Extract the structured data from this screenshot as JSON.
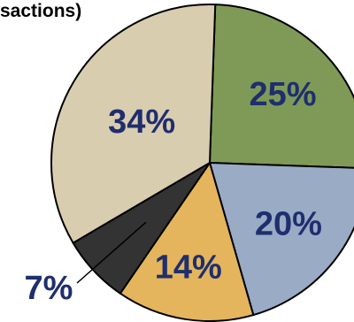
{
  "chart_data": {
    "type": "pie",
    "title": "sactions)",
    "start_angle_deg": 2,
    "direction": "clockwise",
    "slices": [
      {
        "label": "25%",
        "value": 25,
        "color": "#7f9a57"
      },
      {
        "label": "20%",
        "value": 20,
        "color": "#9aabc6"
      },
      {
        "label": "14%",
        "value": 14,
        "color": "#e4b55c"
      },
      {
        "label": "7%",
        "value": 7,
        "color": "#333333"
      },
      {
        "label": "34%",
        "value": 34,
        "color": "#d9cdb0"
      }
    ]
  }
}
